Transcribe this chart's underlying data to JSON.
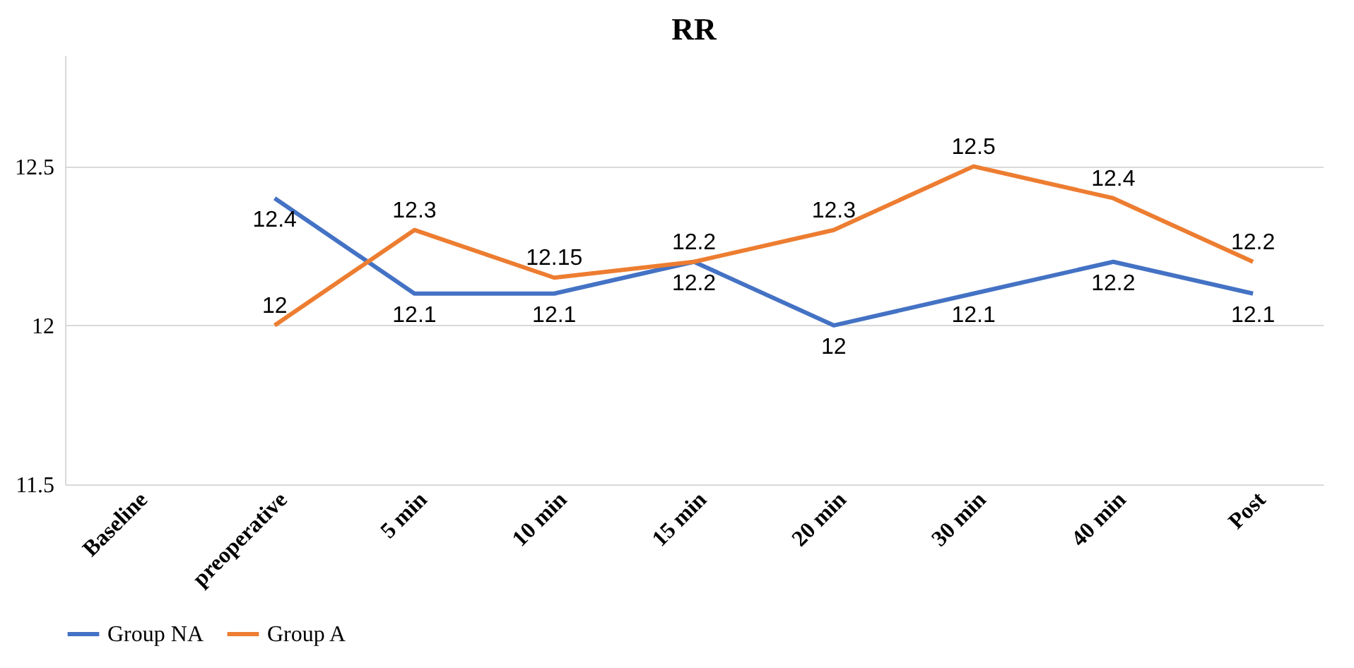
{
  "chart_data": {
    "type": "line",
    "title": "RR",
    "categories": [
      "Baseline",
      "preoperative",
      "5 min",
      "10 min",
      "15 min",
      "20 min",
      "30 min",
      "40 min",
      "Post"
    ],
    "series": [
      {
        "name": "Group NA",
        "color": "#4472c4",
        "values": [
          null,
          12.4,
          12.1,
          12.1,
          12.2,
          12,
          12.1,
          12.2,
          12.1
        ]
      },
      {
        "name": "Group A",
        "color": "#ed7d31",
        "values": [
          null,
          12,
          12.3,
          12.15,
          12.2,
          12.3,
          12.5,
          12.4,
          12.2
        ]
      }
    ],
    "ylim": [
      11.5,
      12.85
    ],
    "yticks": [
      11.5,
      12,
      12.5
    ],
    "grid": "y",
    "legend": "bottom",
    "data_labels": true,
    "marker": "none",
    "line_style": "solid"
  }
}
